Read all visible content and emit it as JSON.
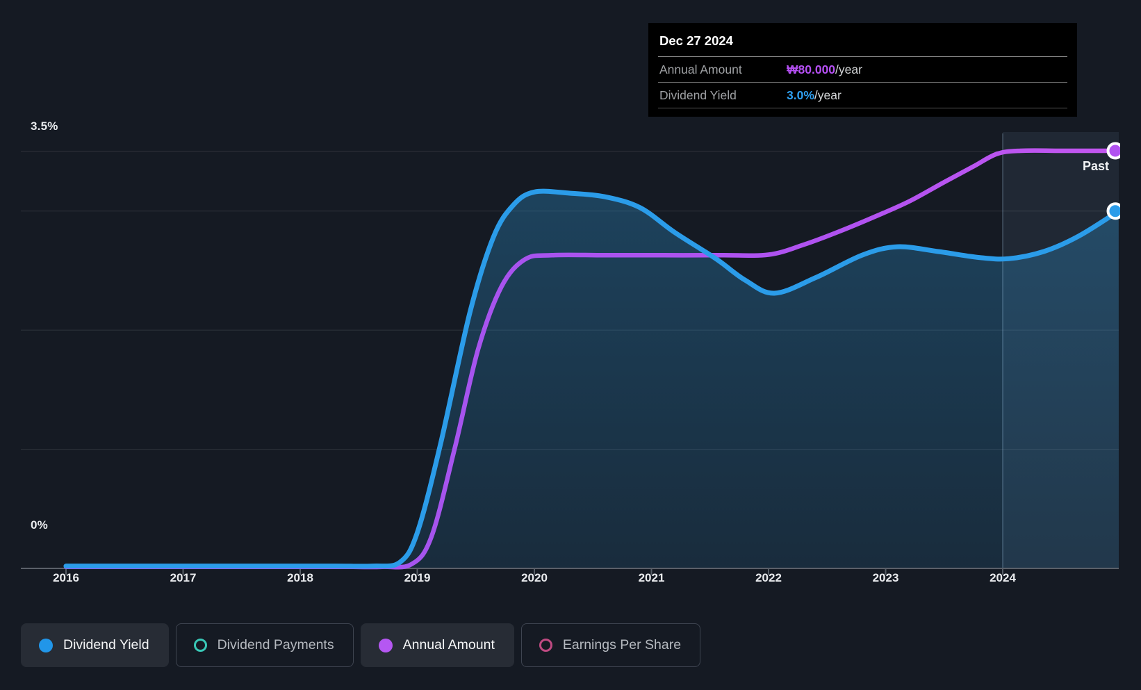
{
  "tooltip": {
    "date": "Dec 27 2024",
    "rows": [
      {
        "label": "Annual Amount",
        "value": "₩80.000",
        "suffix": "/year",
        "color": "#b44ff2"
      },
      {
        "label": "Dividend Yield",
        "value": "3.0%",
        "suffix": "/year",
        "color": "#2e9ff0"
      }
    ]
  },
  "axes": {
    "y_top_label": "3.5%",
    "y_zero_label": "0%",
    "x_labels": [
      "2016",
      "2017",
      "2018",
      "2019",
      "2020",
      "2021",
      "2022",
      "2023",
      "2024"
    ]
  },
  "annotations": {
    "past_label": "Past"
  },
  "legend": [
    {
      "label": "Dividend Yield",
      "marker": "dot",
      "color": "#2196e9",
      "active": true
    },
    {
      "label": "Dividend Payments",
      "marker": "ring",
      "color": "#39c8b7",
      "active": false
    },
    {
      "label": "Annual Amount",
      "marker": "dot",
      "color": "#b557f2",
      "active": true
    },
    {
      "label": "Earnings Per Share",
      "marker": "ring",
      "color": "#bf4a82",
      "active": false
    }
  ],
  "chart_data": {
    "type": "area",
    "title": "Dividend history",
    "x_domain": [
      2016,
      2025
    ],
    "x_ticks": [
      2016,
      2017,
      2018,
      2019,
      2020,
      2021,
      2022,
      2023,
      2024
    ],
    "y_axis": {
      "unit": "%",
      "min": 0,
      "max": 3.5,
      "gridlines": [
        3.5,
        3.0,
        2.0,
        1.0,
        0
      ]
    },
    "past_divider_x": 2024,
    "grid": true,
    "legend_position": "bottom",
    "series": [
      {
        "name": "Dividend Yield",
        "unit": "%",
        "color": "#2b9ce9",
        "area": true,
        "end_value_label": "3.0%/year",
        "points": [
          [
            2016.0,
            0.02
          ],
          [
            2016.6,
            0.02
          ],
          [
            2017.2,
            0.02
          ],
          [
            2017.8,
            0.02
          ],
          [
            2018.3,
            0.02
          ],
          [
            2018.62,
            0.02
          ],
          [
            2018.85,
            0.05
          ],
          [
            2019.0,
            0.3
          ],
          [
            2019.2,
            1.05
          ],
          [
            2019.45,
            2.15
          ],
          [
            2019.65,
            2.78
          ],
          [
            2019.82,
            3.05
          ],
          [
            2020.0,
            3.16
          ],
          [
            2020.3,
            3.15
          ],
          [
            2020.6,
            3.12
          ],
          [
            2020.9,
            3.03
          ],
          [
            2021.2,
            2.82
          ],
          [
            2021.55,
            2.6
          ],
          [
            2021.8,
            2.42
          ],
          [
            2022.05,
            2.31
          ],
          [
            2022.4,
            2.44
          ],
          [
            2022.8,
            2.63
          ],
          [
            2023.1,
            2.7
          ],
          [
            2023.45,
            2.66
          ],
          [
            2023.8,
            2.61
          ],
          [
            2024.05,
            2.6
          ],
          [
            2024.35,
            2.66
          ],
          [
            2024.65,
            2.79
          ],
          [
            2024.99,
            3.0
          ]
        ]
      },
      {
        "name": "Annual Amount",
        "unit": "₩/year",
        "color": "#b152f0",
        "area": false,
        "end_value_label": "₩80.000/year",
        "points": [
          [
            2016.0,
            0.3
          ],
          [
            2016.6,
            0.3
          ],
          [
            2017.2,
            0.3
          ],
          [
            2017.8,
            0.3
          ],
          [
            2018.35,
            0.3
          ],
          [
            2018.7,
            0.3
          ],
          [
            2018.95,
            0.8
          ],
          [
            2019.12,
            6
          ],
          [
            2019.32,
            23
          ],
          [
            2019.52,
            42
          ],
          [
            2019.72,
            54
          ],
          [
            2019.92,
            59.2
          ],
          [
            2020.15,
            60
          ],
          [
            2020.6,
            60
          ],
          [
            2021.1,
            60
          ],
          [
            2021.6,
            60
          ],
          [
            2022.0,
            60.1
          ],
          [
            2022.3,
            62
          ],
          [
            2022.6,
            64.5
          ],
          [
            2022.9,
            67.3
          ],
          [
            2023.2,
            70.3
          ],
          [
            2023.5,
            74
          ],
          [
            2023.75,
            77
          ],
          [
            2023.95,
            79.4
          ],
          [
            2024.15,
            80
          ],
          [
            2024.55,
            80
          ],
          [
            2024.99,
            80
          ]
        ],
        "y_max": 80
      }
    ]
  }
}
